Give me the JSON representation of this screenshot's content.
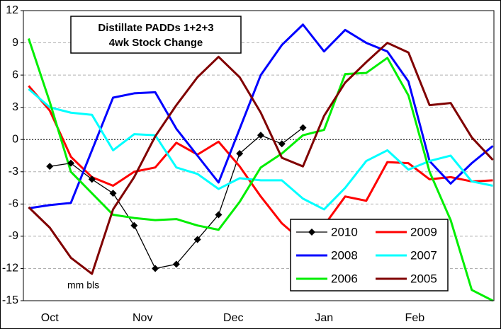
{
  "chart_data": {
    "type": "line",
    "title": "Distillate PADDs 1+2+3",
    "subtitle": "4wk Stock Change",
    "annotation": "mm bls",
    "x": [
      0,
      1,
      2,
      3,
      4,
      5,
      6,
      7,
      8,
      9,
      10,
      11,
      12,
      13,
      14,
      15,
      16,
      17,
      18,
      19,
      20,
      21,
      22
    ],
    "xlim": [
      -0.25,
      22.05
    ],
    "xticks": [
      {
        "value": 1,
        "label": "Oct"
      },
      {
        "value": 5.4,
        "label": "Nov"
      },
      {
        "value": 9.7,
        "label": "Dec"
      },
      {
        "value": 14,
        "label": "Jan"
      },
      {
        "value": 18.3,
        "label": "Feb"
      }
    ],
    "ylim": [
      -15,
      12
    ],
    "yticks": [
      -15,
      -12,
      -9,
      -6,
      -3,
      0,
      3,
      6,
      9,
      12
    ],
    "grid": true,
    "zero_line": true,
    "series": [
      {
        "name": "2010",
        "color": "#000000",
        "marker": "diamond",
        "values": [
          null,
          -2.5,
          -2.2,
          -3.7,
          -5.0,
          -8.0,
          -12.0,
          -11.6,
          -9.3,
          -7.0,
          -1.3,
          0.4,
          -0.4,
          1.1,
          null,
          null,
          null,
          null,
          null,
          null,
          null,
          null,
          null
        ]
      },
      {
        "name": "2009",
        "color": "#ff0000",
        "values": [
          5.0,
          2.7,
          -1.6,
          -3.5,
          -4.3,
          -3.0,
          -2.6,
          -0.3,
          -1.4,
          -0.2,
          -2.5,
          -5.3,
          -7.8,
          -9.5,
          -8.0,
          -5.3,
          -5.7,
          -2.1,
          -2.2,
          -3.7,
          -3.5,
          -3.9,
          -3.8
        ]
      },
      {
        "name": "2008",
        "color": "#0000ff",
        "values": [
          -6.4,
          -6.1,
          -5.9,
          -1.0,
          3.9,
          4.3,
          4.4,
          1.0,
          -1.5,
          -4.0,
          1.0,
          6.0,
          8.8,
          10.7,
          8.2,
          10.2,
          9.0,
          8.2,
          5.4,
          -2.0,
          -4.1,
          -2.2,
          -0.6
        ]
      },
      {
        "name": "2007",
        "color": "#00ffff",
        "values": [
          4.7,
          3.0,
          2.5,
          2.3,
          -1.0,
          0.5,
          0.4,
          -2.6,
          -3.2,
          -4.6,
          -3.6,
          -3.8,
          -3.8,
          -5.5,
          -6.5,
          -4.5,
          -2.0,
          -1.0,
          -2.8,
          -2.0,
          -1.5,
          -3.9,
          -4.3
        ]
      },
      {
        "name": "2006",
        "color": "#00ee00",
        "values": [
          9.4,
          3.5,
          -3.0,
          -5.0,
          -7.0,
          -7.3,
          -7.5,
          -7.4,
          -8.0,
          -8.4,
          -5.8,
          -2.6,
          -1.3,
          0.4,
          0.9,
          6.1,
          6.2,
          7.6,
          4.1,
          -3.0,
          -7.5,
          -14.0,
          -15.0
        ]
      },
      {
        "name": "2005",
        "color": "#800000",
        "values": [
          -6.3,
          -8.2,
          -11.0,
          -12.5,
          -6.5,
          -3.5,
          0.3,
          3.2,
          5.8,
          7.7,
          5.8,
          2.5,
          -1.7,
          -2.5,
          2.2,
          5.3,
          7.2,
          9.0,
          8.1,
          3.2,
          3.4,
          0.2,
          -1.9
        ]
      }
    ]
  }
}
